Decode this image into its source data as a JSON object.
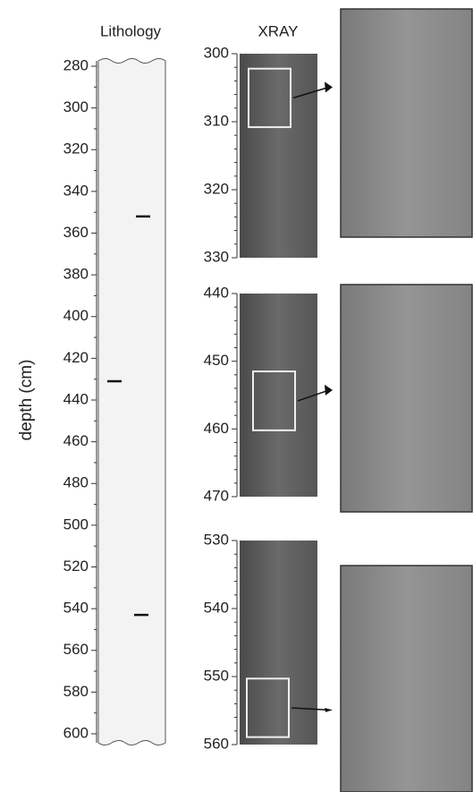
{
  "lithology": {
    "title": "Lithology",
    "ylabel": "depth (cm)",
    "ylim": [
      280,
      600
    ],
    "yticks": [
      280,
      300,
      320,
      340,
      360,
      380,
      400,
      420,
      440,
      460,
      480,
      500,
      520,
      540,
      560,
      580,
      600
    ],
    "layers": [
      352,
      431,
      543
    ]
  },
  "xray": {
    "title": "XRAY",
    "panels": [
      {
        "ylim": [
          300,
          330
        ],
        "yticks": [
          300,
          310,
          320,
          330
        ],
        "window": [
          302.2,
          310.8
        ]
      },
      {
        "ylim": [
          440,
          470
        ],
        "yticks": [
          440,
          450,
          460,
          470
        ],
        "window": [
          451.5,
          460.2
        ]
      },
      {
        "ylim": [
          530,
          560
        ],
        "yticks": [
          530,
          540,
          550,
          560
        ],
        "window": [
          550.3,
          558.9
        ]
      }
    ]
  }
}
